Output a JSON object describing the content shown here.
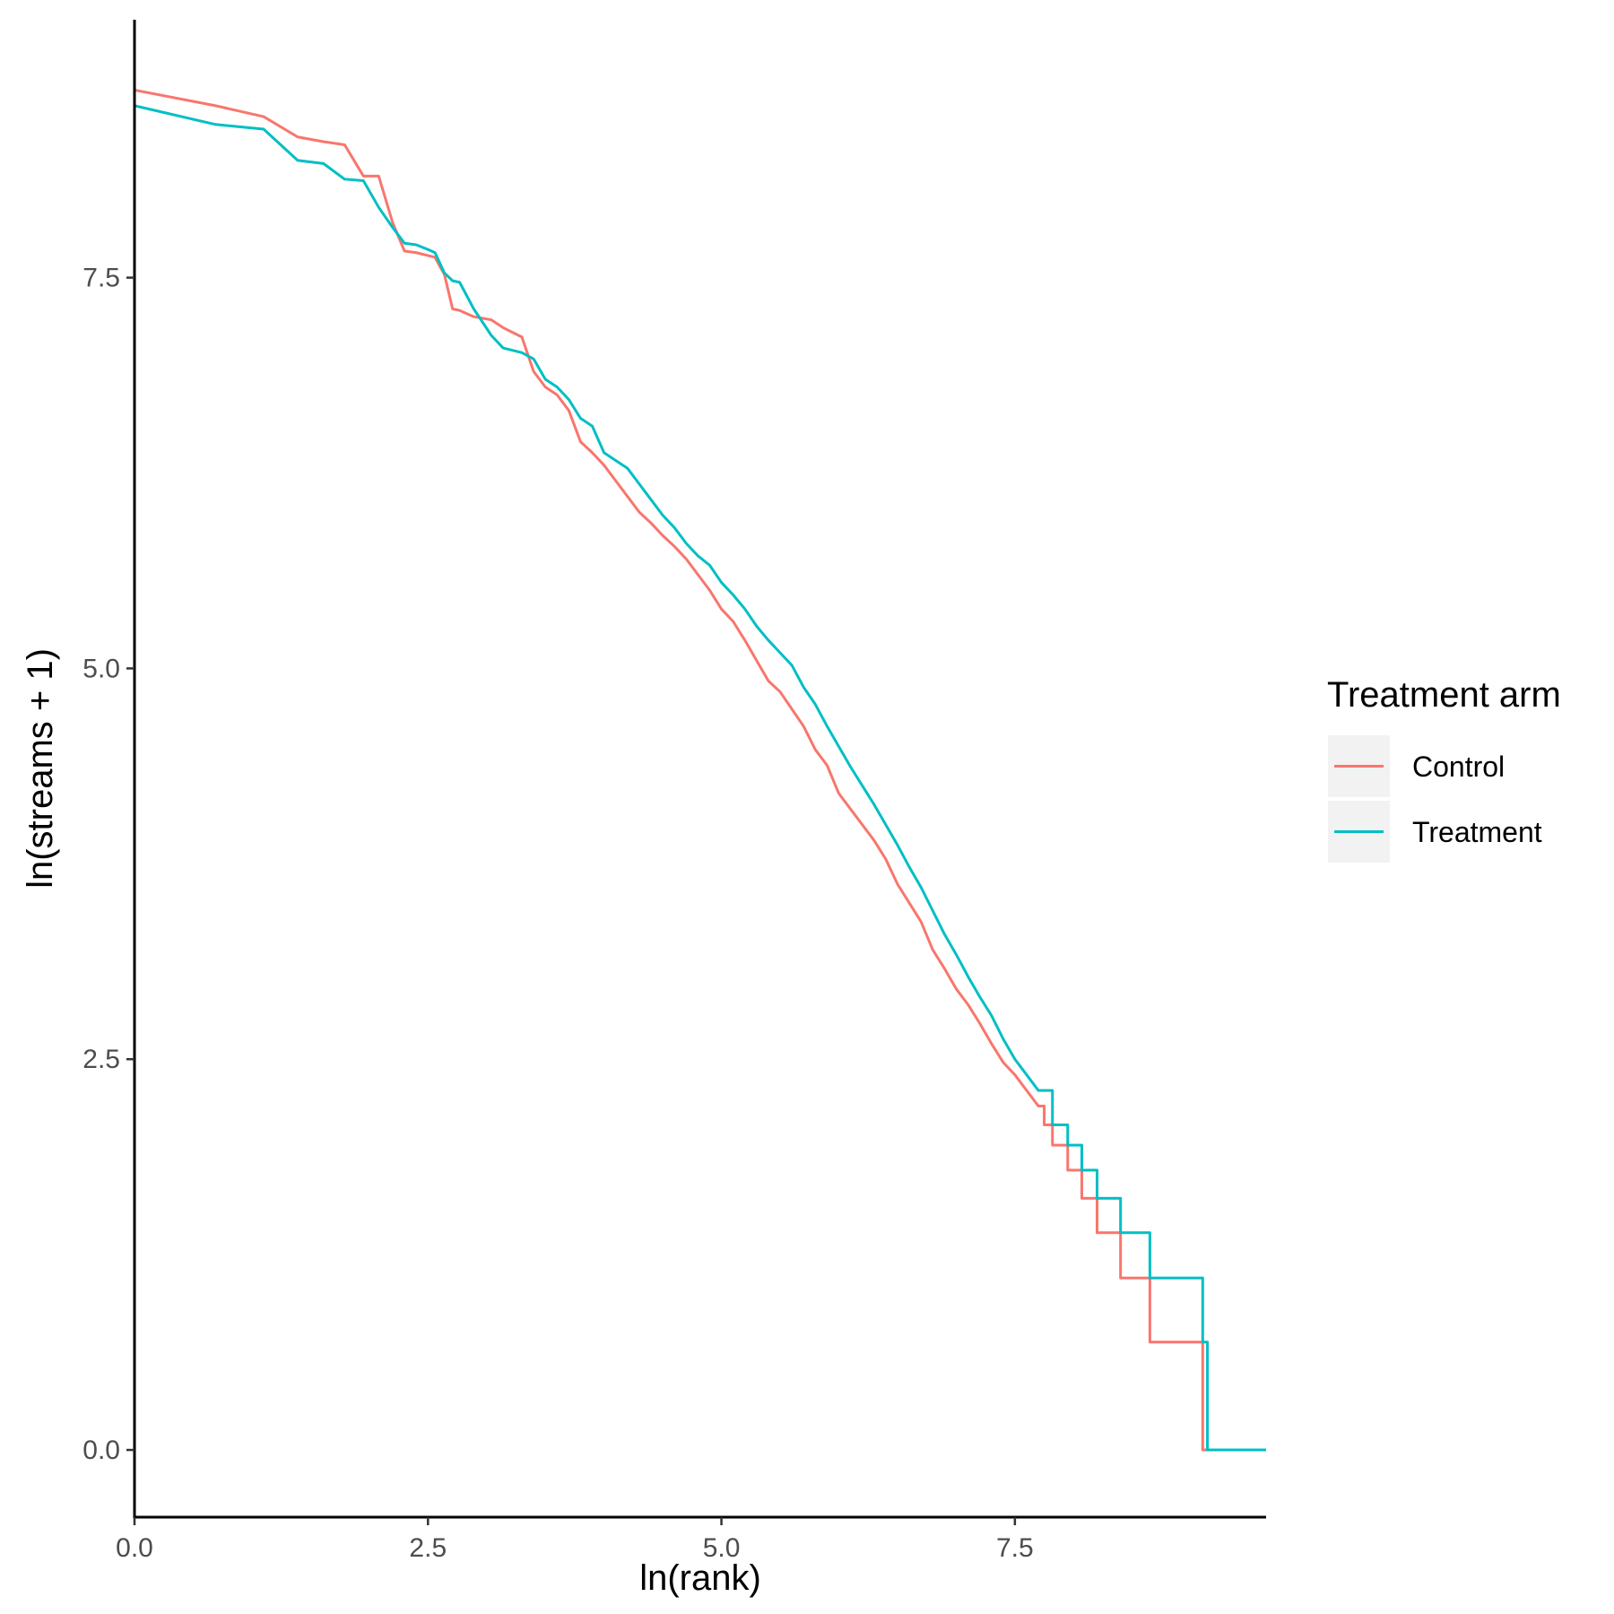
{
  "chart_data": {
    "type": "line",
    "title": "",
    "xlabel": "ln(rank)",
    "ylabel": "ln(streams + 1)",
    "xlim": [
      0,
      9.64
    ],
    "ylim": [
      -0.43,
      9.15
    ],
    "x_ticks": [
      0,
      2.5,
      5,
      7.5
    ],
    "x_tick_labels": [
      "0.0",
      "2.5",
      "5.0",
      "7.5"
    ],
    "y_ticks": [
      0,
      2.5,
      5,
      7.5
    ],
    "y_tick_labels": [
      "0.0",
      "2.5",
      "5.0",
      "7.5"
    ],
    "grid": false,
    "legend": {
      "title": "Treatment arm",
      "position": "right"
    },
    "series": [
      {
        "name": "Control",
        "color": "#F8766D",
        "points": [
          [
            0,
            8.7
          ],
          [
            0.69,
            8.6
          ],
          [
            1.1,
            8.53
          ],
          [
            1.39,
            8.4
          ],
          [
            1.61,
            8.37
          ],
          [
            1.79,
            8.35
          ],
          [
            1.95,
            8.15
          ],
          [
            2.08,
            8.15
          ],
          [
            2.2,
            7.85
          ],
          [
            2.3,
            7.67
          ],
          [
            2.4,
            7.66
          ],
          [
            2.56,
            7.63
          ],
          [
            2.64,
            7.52
          ],
          [
            2.71,
            7.3
          ],
          [
            2.77,
            7.29
          ],
          [
            2.89,
            7.25
          ],
          [
            3.04,
            7.23
          ],
          [
            3.14,
            7.18
          ],
          [
            3.3,
            7.12
          ],
          [
            3.4,
            6.9
          ],
          [
            3.5,
            6.8
          ],
          [
            3.6,
            6.75
          ],
          [
            3.7,
            6.65
          ],
          [
            3.8,
            6.45
          ],
          [
            3.9,
            6.38
          ],
          [
            4.0,
            6.3
          ],
          [
            4.1,
            6.2
          ],
          [
            4.2,
            6.1
          ],
          [
            4.3,
            6.0
          ],
          [
            4.4,
            5.93
          ],
          [
            4.5,
            5.85
          ],
          [
            4.6,
            5.78
          ],
          [
            4.7,
            5.7
          ],
          [
            4.8,
            5.6
          ],
          [
            4.9,
            5.5
          ],
          [
            5.0,
            5.38
          ],
          [
            5.1,
            5.3
          ],
          [
            5.2,
            5.18
          ],
          [
            5.3,
            5.05
          ],
          [
            5.4,
            4.92
          ],
          [
            5.5,
            4.85
          ],
          [
            5.6,
            4.74
          ],
          [
            5.7,
            4.63
          ],
          [
            5.8,
            4.48
          ],
          [
            5.9,
            4.38
          ],
          [
            6.0,
            4.2
          ],
          [
            6.1,
            4.1
          ],
          [
            6.2,
            4.0
          ],
          [
            6.3,
            3.9
          ],
          [
            6.4,
            3.78
          ],
          [
            6.5,
            3.62
          ],
          [
            6.6,
            3.5
          ],
          [
            6.7,
            3.38
          ],
          [
            6.8,
            3.2
          ],
          [
            6.9,
            3.08
          ],
          [
            7.0,
            2.95
          ],
          [
            7.1,
            2.85
          ],
          [
            7.2,
            2.73
          ],
          [
            7.3,
            2.6
          ],
          [
            7.4,
            2.48
          ],
          [
            7.5,
            2.4
          ],
          [
            7.6,
            2.3
          ],
          [
            7.7,
            2.2
          ],
          [
            7.75,
            2.2
          ],
          [
            7.75,
            2.08
          ],
          [
            7.82,
            2.08
          ],
          [
            7.82,
            1.95
          ],
          [
            7.95,
            1.95
          ],
          [
            7.95,
            1.79
          ],
          [
            8.07,
            1.79
          ],
          [
            8.07,
            1.61
          ],
          [
            8.2,
            1.61
          ],
          [
            8.2,
            1.39
          ],
          [
            8.4,
            1.39
          ],
          [
            8.4,
            1.1
          ],
          [
            8.65,
            1.1
          ],
          [
            8.65,
            0.69
          ],
          [
            9.1,
            0.69
          ],
          [
            9.1,
            0.0
          ],
          [
            9.64,
            0.0
          ]
        ]
      },
      {
        "name": "Treatment",
        "color": "#00BFC4",
        "points": [
          [
            0,
            8.6
          ],
          [
            0.69,
            8.48
          ],
          [
            1.1,
            8.45
          ],
          [
            1.39,
            8.25
          ],
          [
            1.61,
            8.23
          ],
          [
            1.79,
            8.13
          ],
          [
            1.95,
            8.12
          ],
          [
            2.08,
            7.95
          ],
          [
            2.2,
            7.82
          ],
          [
            2.3,
            7.72
          ],
          [
            2.4,
            7.71
          ],
          [
            2.5,
            7.68
          ],
          [
            2.56,
            7.66
          ],
          [
            2.64,
            7.53
          ],
          [
            2.71,
            7.48
          ],
          [
            2.77,
            7.47
          ],
          [
            2.89,
            7.3
          ],
          [
            3.04,
            7.13
          ],
          [
            3.14,
            7.05
          ],
          [
            3.3,
            7.02
          ],
          [
            3.4,
            6.98
          ],
          [
            3.5,
            6.85
          ],
          [
            3.6,
            6.8
          ],
          [
            3.7,
            6.72
          ],
          [
            3.8,
            6.6
          ],
          [
            3.9,
            6.55
          ],
          [
            4.0,
            6.38
          ],
          [
            4.1,
            6.33
          ],
          [
            4.2,
            6.28
          ],
          [
            4.3,
            6.18
          ],
          [
            4.4,
            6.08
          ],
          [
            4.5,
            5.98
          ],
          [
            4.6,
            5.9
          ],
          [
            4.7,
            5.8
          ],
          [
            4.8,
            5.72
          ],
          [
            4.9,
            5.66
          ],
          [
            5.0,
            5.55
          ],
          [
            5.1,
            5.47
          ],
          [
            5.2,
            5.38
          ],
          [
            5.3,
            5.27
          ],
          [
            5.4,
            5.18
          ],
          [
            5.5,
            5.1
          ],
          [
            5.6,
            5.02
          ],
          [
            5.7,
            4.88
          ],
          [
            5.8,
            4.77
          ],
          [
            5.9,
            4.63
          ],
          [
            6.0,
            4.5
          ],
          [
            6.1,
            4.37
          ],
          [
            6.2,
            4.25
          ],
          [
            6.3,
            4.13
          ],
          [
            6.4,
            4.0
          ],
          [
            6.5,
            3.87
          ],
          [
            6.6,
            3.73
          ],
          [
            6.7,
            3.6
          ],
          [
            6.8,
            3.45
          ],
          [
            6.9,
            3.3
          ],
          [
            7.0,
            3.17
          ],
          [
            7.1,
            3.03
          ],
          [
            7.2,
            2.9
          ],
          [
            7.3,
            2.78
          ],
          [
            7.4,
            2.63
          ],
          [
            7.5,
            2.5
          ],
          [
            7.6,
            2.4
          ],
          [
            7.7,
            2.3
          ],
          [
            7.82,
            2.3
          ],
          [
            7.82,
            2.08
          ],
          [
            7.95,
            2.08
          ],
          [
            7.95,
            1.95
          ],
          [
            8.07,
            1.95
          ],
          [
            8.07,
            1.79
          ],
          [
            8.2,
            1.79
          ],
          [
            8.2,
            1.61
          ],
          [
            8.4,
            1.61
          ],
          [
            8.4,
            1.39
          ],
          [
            8.65,
            1.39
          ],
          [
            8.65,
            1.1
          ],
          [
            9.1,
            1.1
          ],
          [
            9.1,
            0.69
          ],
          [
            9.14,
            0.69
          ],
          [
            9.14,
            0.0
          ],
          [
            9.64,
            0.0
          ]
        ]
      }
    ]
  }
}
